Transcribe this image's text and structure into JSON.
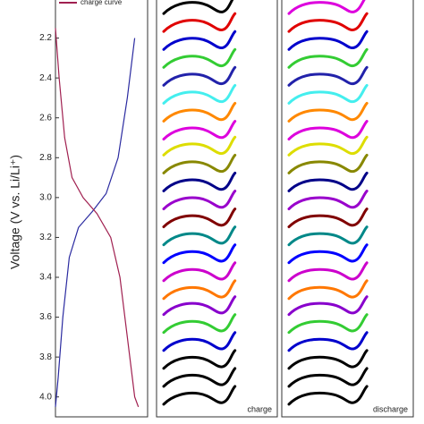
{
  "chart_data": [
    {
      "type": "line",
      "ylabel": "Voltage (V vs. Li/Li⁺)",
      "ylim": [
        2.0,
        4.1
      ],
      "y_inverted": true,
      "yticks": [
        {
          "value": 2.2,
          "label": "2.2"
        },
        {
          "value": 2.4,
          "label": "2.4"
        },
        {
          "value": 2.6,
          "label": "2.6"
        },
        {
          "value": 2.8,
          "label": "2.8"
        },
        {
          "value": 3.0,
          "label": "3.0"
        },
        {
          "value": 3.2,
          "label": "3.2"
        },
        {
          "value": 3.4,
          "label": "3.4"
        },
        {
          "value": 3.6,
          "label": "3.6"
        },
        {
          "value": 3.8,
          "label": "3.8"
        },
        {
          "value": 4.0,
          "label": "4.0"
        }
      ],
      "xlim": [
        0,
        1
      ],
      "series": [
        {
          "color": "#2a2aa0",
          "x": [
            0.86,
            0.78,
            0.68,
            0.55,
            0.4,
            0.25,
            0.15,
            0.08,
            0.03,
            0.0
          ],
          "values": [
            2.2,
            2.5,
            2.8,
            2.98,
            3.07,
            3.15,
            3.3,
            3.6,
            3.9,
            4.05
          ]
        },
        {
          "name": "charge curve",
          "color": "#a02050",
          "x": [
            0.0,
            0.04,
            0.1,
            0.18,
            0.3,
            0.45,
            0.6,
            0.7,
            0.78,
            0.86,
            0.9
          ],
          "values": [
            2.15,
            2.4,
            2.7,
            2.9,
            3.0,
            3.08,
            3.2,
            3.4,
            3.7,
            4.0,
            4.05
          ]
        }
      ]
    },
    {
      "type": "stack",
      "label": "charge",
      "values": [
        2.05,
        2.14,
        2.23,
        2.32,
        2.41,
        2.5,
        2.59,
        2.68,
        2.76,
        2.85,
        2.94,
        3.03,
        3.12,
        3.21,
        3.3,
        3.39,
        3.48,
        3.56,
        3.65,
        3.74,
        3.83,
        3.92,
        4.01
      ],
      "colors": [
        "#000000",
        "#e00000",
        "#0000cc",
        "#33cc33",
        "#2222aa",
        "#44eeee",
        "#ff8800",
        "#dd00dd",
        "#dddd00",
        "#888800",
        "#000088",
        "#9900cc",
        "#800000",
        "#008888",
        "#0000ff",
        "#cc00cc",
        "#ff7700",
        "#8800cc",
        "#33cc33",
        "#0000cc",
        "#000000",
        "#000000",
        "#000000"
      ]
    },
    {
      "type": "stack",
      "label": "discharge",
      "values": [
        2.05,
        2.14,
        2.23,
        2.32,
        2.41,
        2.5,
        2.59,
        2.68,
        2.76,
        2.85,
        2.94,
        3.03,
        3.12,
        3.21,
        3.3,
        3.39,
        3.48,
        3.56,
        3.65,
        3.74,
        3.83,
        3.92,
        4.01
      ],
      "colors": [
        "#dd00dd",
        "#e00000",
        "#0000cc",
        "#33cc33",
        "#2222aa",
        "#44eeee",
        "#ff8800",
        "#dd00dd",
        "#dddd00",
        "#888800",
        "#000088",
        "#9900cc",
        "#800000",
        "#008888",
        "#0000ff",
        "#cc00cc",
        "#ff7700",
        "#8800cc",
        "#33cc33",
        "#0000cc",
        "#000000",
        "#000000",
        "#000000"
      ]
    }
  ]
}
